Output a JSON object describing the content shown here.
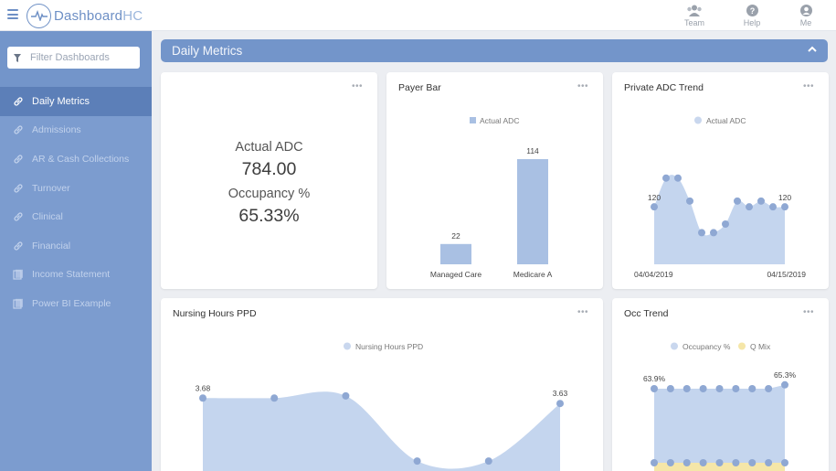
{
  "app": {
    "logo_text_main": "Dashboard",
    "logo_text_accent": "HC"
  },
  "topnav": [
    {
      "label": "Team",
      "icon": "team-icon"
    },
    {
      "label": "Help",
      "icon": "help-icon"
    },
    {
      "label": "Me",
      "icon": "user-icon"
    }
  ],
  "sidebar": {
    "filter_placeholder": "Filter Dashboards",
    "items": [
      {
        "label": "Daily Metrics",
        "icon": "link-icon",
        "active": true
      },
      {
        "label": "Admissions",
        "icon": "link-icon"
      },
      {
        "label": "AR & Cash Collections",
        "icon": "link-icon"
      },
      {
        "label": "Turnover",
        "icon": "link-icon"
      },
      {
        "label": "Clinical",
        "icon": "link-icon"
      },
      {
        "label": "Financial",
        "icon": "link-icon"
      },
      {
        "label": "Income Statement",
        "icon": "report-icon"
      },
      {
        "label": "Power BI Example",
        "icon": "report-icon"
      }
    ]
  },
  "page": {
    "title": "Daily Metrics"
  },
  "kpi": {
    "label1": "Actual ADC",
    "value1": "784.00",
    "label2": "Occupancy %",
    "value2": "65.33%",
    "menu": "•••"
  },
  "colors": {
    "accent": "#7395ca",
    "series_blue": "#a9c0e3",
    "series_point": "#8fa8d3",
    "area_fill": "#c4d5ee",
    "q_mix": "#f5e6a8"
  },
  "chart_data": [
    {
      "type": "bar",
      "title": "Payer Bar",
      "menu": "•••",
      "legend": "Actual ADC",
      "categories": [
        "Managed Care",
        "Medicare A"
      ],
      "values": [
        22,
        114
      ],
      "value_labels": [
        "22",
        "114"
      ],
      "ylim": [
        0,
        114
      ]
    },
    {
      "type": "area",
      "title": "Private ADC Trend",
      "menu": "•••",
      "legend": "Actual ADC",
      "x_start_label": "04/04/2019",
      "x_end_label": "04/15/2019",
      "values": [
        120,
        130,
        130,
        122,
        111,
        111,
        114,
        122,
        120,
        122,
        120,
        120
      ],
      "first_label": "120",
      "last_label": "120",
      "ylim": [
        100,
        135
      ]
    },
    {
      "type": "area",
      "title": "Nursing Hours PPD",
      "menu": "•••",
      "legend": "Nursing Hours PPD",
      "values": [
        3.68,
        3.68,
        3.7,
        3.1,
        3.1,
        3.63
      ],
      "first_label": "3.68",
      "last_label": "3.63",
      "ylim": [
        3.0,
        3.8
      ]
    },
    {
      "type": "area",
      "title": "Occ Trend",
      "menu": "•••",
      "series": [
        {
          "name": "Occupancy %",
          "values": [
            63.9,
            63.9,
            63.9,
            63.9,
            63.9,
            63.9,
            63.9,
            63.9,
            65.3
          ]
        },
        {
          "name": "Q Mix",
          "values": [
            0,
            0,
            0,
            0,
            0,
            0,
            0,
            0,
            0
          ]
        }
      ],
      "first_label": "63.9%",
      "last_label": "65.3%"
    }
  ]
}
